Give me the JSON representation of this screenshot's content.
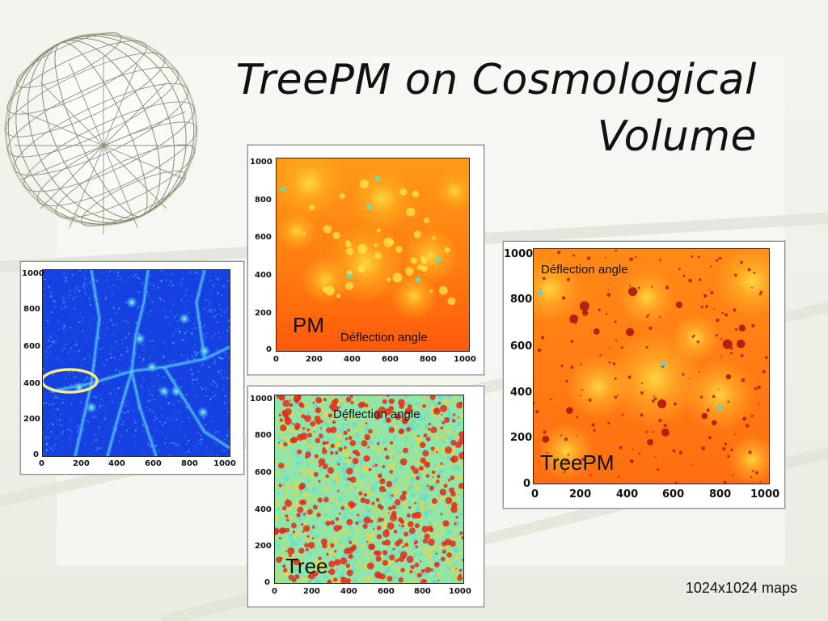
{
  "slide": {
    "title_line1": "TreePM on Cosmological",
    "title_line2": "Volume",
    "footer_note": "1024x1024 maps"
  },
  "panels": {
    "density": {
      "x_ticks": [
        "0",
        "200",
        "400",
        "600",
        "800",
        "1000"
      ],
      "y_ticks": [
        "1000",
        "800",
        "600",
        "400",
        "200",
        "0"
      ],
      "colors": {
        "base": "#1640e0",
        "filament": "#3fb8ff",
        "halo": "#f4f060",
        "marker": "#f3eb8a"
      }
    },
    "pm": {
      "label": "PM",
      "sublabel": "Déflection angle",
      "x_ticks": [
        "0",
        "200",
        "400",
        "600",
        "800",
        "1000"
      ],
      "y_ticks": [
        "1000",
        "800",
        "600",
        "400",
        "200",
        "0"
      ],
      "colors": {
        "base": "#ff7a10",
        "warm": "#ffb020",
        "peak": "#fff04a",
        "core": "#4fe6d0"
      }
    },
    "tree": {
      "label": "Tree",
      "sublabel": "Déflection angle",
      "x_ticks": [
        "0",
        "200",
        "400",
        "600",
        "800",
        "1000"
      ],
      "y_ticks": [
        "1000",
        "800",
        "600",
        "400",
        "200",
        "0"
      ],
      "colors": {
        "base": "#8fe6a8",
        "cyan": "#57d8e0",
        "hot": "#e8281a",
        "warm": "#ffd02a"
      }
    },
    "treepm": {
      "label": "TreePM",
      "sublabel": "Déflection angle",
      "x_ticks": [
        "0",
        "200",
        "400",
        "600",
        "800",
        "1000"
      ],
      "y_ticks": [
        "1000",
        "800",
        "600",
        "400",
        "200",
        "0"
      ],
      "colors": {
        "base": "#ff6e12",
        "warm": "#ffb22a",
        "peak": "#fff24e",
        "dark": "#b0140e"
      }
    }
  }
}
